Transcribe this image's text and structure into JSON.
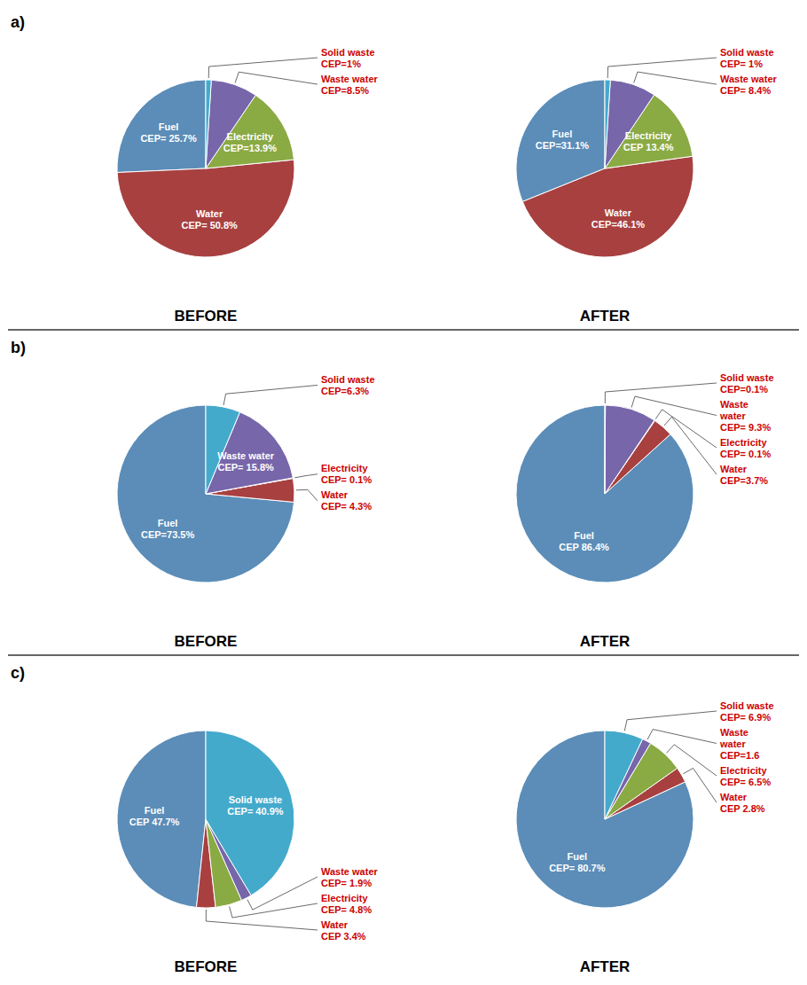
{
  "chart_data": [
    {
      "type": "pie",
      "title": "BEFORE",
      "subtitle": "a)",
      "values": [
        25.7,
        50.8,
        13.9,
        8.5,
        1.0
      ],
      "colors": [
        "#5B8DB8",
        "#A84040",
        "#8AAA44",
        "#7766AA",
        "#44AACC"
      ],
      "data_labels": true,
      "value_labels": [
        "Fuel\nCEP= 25.7%",
        "Water\nCEP= 50.8%",
        "Electricity\nCEP=13.9%",
        "Waste water\nCEP=8.5%",
        "Solid waste\nCEP=1%"
      ]
    },
    {
      "type": "pie",
      "title": "AFTER",
      "values": [
        31.1,
        46.1,
        13.4,
        8.4,
        1.0
      ],
      "colors": [
        "#5B8DB8",
        "#A84040",
        "#8AAA44",
        "#7766AA",
        "#44AACC"
      ],
      "data_labels": true,
      "value_labels": [
        "Fuel\nCEP=31.1%",
        "Water\nCEP=46.1%",
        "Electricity\nCEP 13.4%",
        "Waste water\nCEP= 8.4%",
        "Solid waste\nCEP= 1%"
      ]
    },
    {
      "type": "pie",
      "title": "BEFORE",
      "subtitle": "b)",
      "values": [
        73.5,
        4.3,
        0.1,
        15.8,
        6.3
      ],
      "colors": [
        "#5B8DB8",
        "#A84040",
        "#8AAA44",
        "#7766AA",
        "#44AACC"
      ],
      "data_labels": true,
      "value_labels": [
        "Fuel\nCEP=73.5%",
        "Water\nCEP= 4.3%",
        "Electricity\nCEP= 0.1%",
        "Waste water\nCEP= 15.8%",
        "Solid waste\nCEP=6.3%"
      ]
    },
    {
      "type": "pie",
      "title": "AFTER",
      "values": [
        86.4,
        3.7,
        0.1,
        9.3,
        0.1
      ],
      "colors": [
        "#5B8DB8",
        "#A84040",
        "#8AAA44",
        "#7766AA",
        "#44AACC"
      ],
      "data_labels": true,
      "value_labels": [
        "Fuel\nCEP 86.4%",
        "Water\nCEP=3.7%",
        "Electricity\nCEP= 0.1%",
        "Waste\nwater\nCEP= 9.3%",
        "Solid waste\nCEP=0.1%"
      ]
    },
    {
      "type": "pie",
      "title": "BEFORE",
      "subtitle": "c)",
      "values": [
        47.7,
        3.4,
        4.8,
        1.9,
        40.9
      ],
      "colors": [
        "#5B8DB8",
        "#A84040",
        "#8AAA44",
        "#7766AA",
        "#44AACC"
      ],
      "data_labels": true,
      "value_labels": [
        "Fuel\nCEP 47.7%",
        "Water\nCEP 3.4%",
        "Electricity\nCEP= 4.8%",
        "Waste water\nCEP= 1.9%",
        "Solid waste\nCEP= 40.9%"
      ]
    },
    {
      "type": "pie",
      "title": "AFTER",
      "values": [
        80.7,
        2.8,
        6.5,
        1.6,
        6.9
      ],
      "colors": [
        "#5B8DB8",
        "#A84040",
        "#8AAA44",
        "#7766AA",
        "#44AACC"
      ],
      "data_labels": true,
      "value_labels": [
        "Fuel\nCEP= 80.7%",
        "Water\nCEP 2.8%",
        "Electricity\nCEP= 6.5%",
        "Waste\nwater\nCEP=1.6",
        "Solid waste\nCEP= 6.9%"
      ]
    }
  ]
}
